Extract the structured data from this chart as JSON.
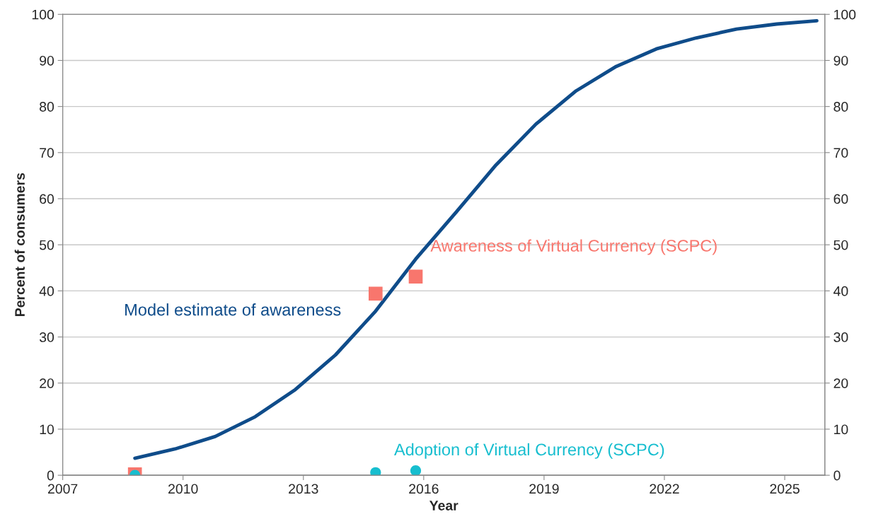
{
  "chart_data": {
    "type": "line",
    "xlabel": "Year",
    "ylabel": "Percent of consumers",
    "xlim": [
      2007,
      2026
    ],
    "xticks": [
      2007,
      2010,
      2013,
      2016,
      2019,
      2022,
      2025
    ],
    "ylim": [
      0,
      100
    ],
    "yticks": [
      0,
      10,
      20,
      30,
      40,
      50,
      60,
      70,
      80,
      90,
      100
    ],
    "y2lim": [
      0,
      100
    ],
    "y2ticks": [
      0,
      10,
      20,
      30,
      40,
      50,
      60,
      70,
      80,
      90,
      100
    ],
    "grid": "y",
    "legend": false,
    "series": [
      {
        "name": "Model estimate of awareness",
        "color": "#0f4c8a",
        "marker": "none",
        "line_style": "solid",
        "x": [
          2008.8,
          2009.8,
          2010.8,
          2011.8,
          2012.8,
          2013.8,
          2014.8,
          2015.8,
          2016.8,
          2017.8,
          2018.8,
          2019.8,
          2020.8,
          2021.8,
          2022.8,
          2023.8,
          2024.8,
          2025.8
        ],
        "values": [
          3.7,
          5.7,
          8.4,
          12.7,
          18.6,
          26.1,
          35.6,
          46.9,
          57,
          67.3,
          76.2,
          83.4,
          88.7,
          92.5,
          94.9,
          96.8,
          97.9,
          98.6
        ]
      },
      {
        "name": "Awareness of Virtual Currency (SCPC)",
        "type": "scatter",
        "color": "#f8766d",
        "marker": "square",
        "x": [
          2008.8,
          2014.8,
          2015.8
        ],
        "values": [
          0.2,
          39.4,
          43.1
        ]
      },
      {
        "name": "Adoption of Virtual Currency (SCPC)",
        "type": "scatter",
        "color": "#17becf",
        "marker": "circle",
        "x": [
          2008.8,
          2014.8,
          2015.8
        ],
        "values": [
          0,
          0.6,
          1.0
        ]
      }
    ]
  }
}
